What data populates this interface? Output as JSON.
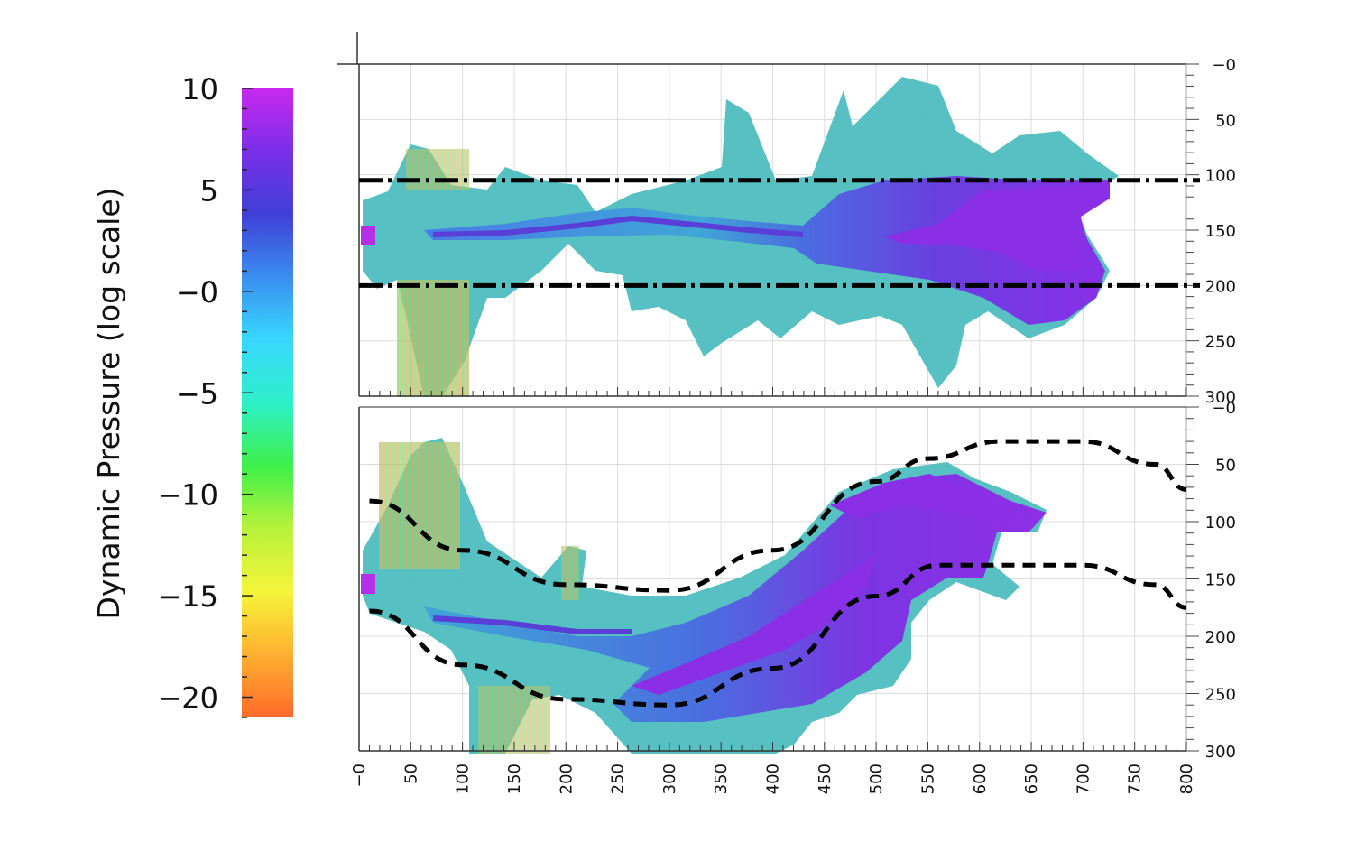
{
  "chart_data": [
    {
      "type": "colorbar",
      "title": "Dynamic Pressure (log scale)",
      "range": [
        -21,
        10
      ],
      "ticks": [
        10,
        5,
        0,
        -5,
        -10,
        -15,
        -20
      ],
      "tick_labels": [
        "10",
        "5",
        "−0",
        "−5",
        "−10",
        "−15",
        "−20"
      ],
      "colormap": [
        "#ff6a2a",
        "#ffb030",
        "#f5f53a",
        "#b8f23a",
        "#3ef04a",
        "#2ef0c8",
        "#38d8ff",
        "#3a8ef0",
        "#3f3fd8",
        "#7a2fe8",
        "#c828f0"
      ]
    },
    {
      "type": "heatmap",
      "panel": "top",
      "x_ticks": [
        0,
        50,
        100,
        150,
        200,
        250,
        300,
        350,
        400,
        450,
        500,
        550,
        600,
        650,
        700,
        750,
        800
      ],
      "y_ticks": [
        0,
        50,
        100,
        150,
        200,
        250,
        300
      ],
      "y_tick_labels": [
        "−0",
        "50",
        "100",
        "150",
        "200",
        "250",
        "300"
      ],
      "xlim": [
        0,
        800
      ],
      "ylim": [
        300,
        0
      ],
      "guide_lines": [
        {
          "style": "dash-dot",
          "y": 105
        },
        {
          "style": "dash-dot",
          "y": 200
        }
      ]
    },
    {
      "type": "heatmap",
      "panel": "bottom",
      "x_ticks": [
        0,
        50,
        100,
        150,
        200,
        250,
        300,
        350,
        400,
        450,
        500,
        550,
        600,
        650,
        700,
        750,
        800
      ],
      "x_tick_labels": [
        "−0",
        "50",
        "100",
        "150",
        "200",
        "250",
        "300",
        "350",
        "400",
        "450",
        "500",
        "550",
        "600",
        "650",
        "700",
        "750",
        "800"
      ],
      "y_ticks": [
        0,
        50,
        100,
        150,
        200,
        250,
        300
      ],
      "y_tick_labels": [
        "−0",
        "50",
        "100",
        "150",
        "200",
        "250",
        "300"
      ],
      "xlim": [
        0,
        800
      ],
      "ylim": [
        300,
        0
      ],
      "guide_lines": [
        {
          "style": "dashed",
          "points": [
            [
              10,
              82
            ],
            [
              100,
              125
            ],
            [
              200,
              155
            ],
            [
              300,
              160
            ],
            [
              400,
              125
            ],
            [
              500,
              65
            ],
            [
              550,
              45
            ],
            [
              620,
              30
            ],
            [
              700,
              30
            ],
            [
              770,
              50
            ],
            [
              800,
              72
            ]
          ]
        },
        {
          "style": "dashed",
          "points": [
            [
              10,
              178
            ],
            [
              100,
              225
            ],
            [
              200,
              255
            ],
            [
              300,
              260
            ],
            [
              400,
              228
            ],
            [
              500,
              165
            ],
            [
              560,
              138
            ],
            [
              620,
              138
            ],
            [
              700,
              138
            ],
            [
              770,
              155
            ],
            [
              800,
              175
            ]
          ]
        }
      ]
    }
  ]
}
